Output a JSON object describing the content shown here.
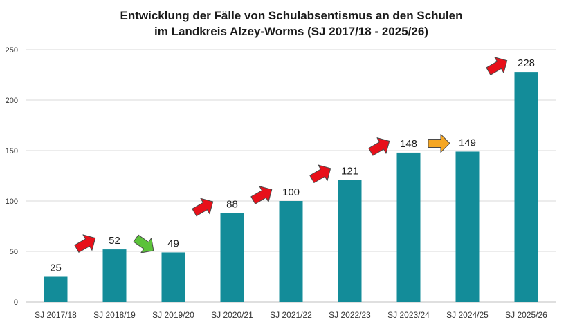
{
  "chart_data": {
    "type": "bar",
    "title_lines": [
      "Entwicklung der Fälle von Schulabsentismus an den Schulen",
      "im Landkreis Alzey-Worms (SJ 2017/18 - 2025/26)"
    ],
    "categories": [
      "SJ 2017/18",
      "SJ 2018/19",
      "SJ 2019/20",
      "SJ 2020/21",
      "SJ 2021/22",
      "SJ 2022/23",
      "SJ 2023/24",
      "SJ 2024/25",
      "SJ 2025/26"
    ],
    "values": [
      25,
      52,
      49,
      88,
      100,
      121,
      148,
      149,
      228
    ],
    "data_labels": [
      "25",
      "52",
      "49",
      "88",
      "100",
      "121",
      "148",
      "149",
      "228"
    ],
    "ylim": [
      0,
      250
    ],
    "yticks": [
      0,
      50,
      100,
      150,
      200,
      250
    ],
    "ytick_labels": [
      "0",
      "50",
      "100",
      "150",
      "200",
      "250"
    ],
    "grid": true,
    "legend": "none",
    "bar_color": "#138C99",
    "trend_arrows": [
      {
        "between": [
          "SJ 2017/18",
          "SJ 2018/19"
        ],
        "direction": "up",
        "color": "#E8101A"
      },
      {
        "between": [
          "SJ 2018/19",
          "SJ 2019/20"
        ],
        "direction": "down",
        "color": "#5BC23A"
      },
      {
        "between": [
          "SJ 2019/20",
          "SJ 2020/21"
        ],
        "direction": "up",
        "color": "#E8101A"
      },
      {
        "between": [
          "SJ 2020/21",
          "SJ 2021/22"
        ],
        "direction": "up",
        "color": "#E8101A"
      },
      {
        "between": [
          "SJ 2021/22",
          "SJ 2022/23"
        ],
        "direction": "up",
        "color": "#E8101A"
      },
      {
        "between": [
          "SJ 2022/23",
          "SJ 2023/24"
        ],
        "direction": "up",
        "color": "#E8101A"
      },
      {
        "between": [
          "SJ 2023/24",
          "SJ 2024/25"
        ],
        "direction": "right",
        "color": "#F5A623"
      },
      {
        "between": [
          "SJ 2024/25",
          "SJ 2025/26"
        ],
        "direction": "up",
        "color": "#E8101A"
      }
    ]
  }
}
